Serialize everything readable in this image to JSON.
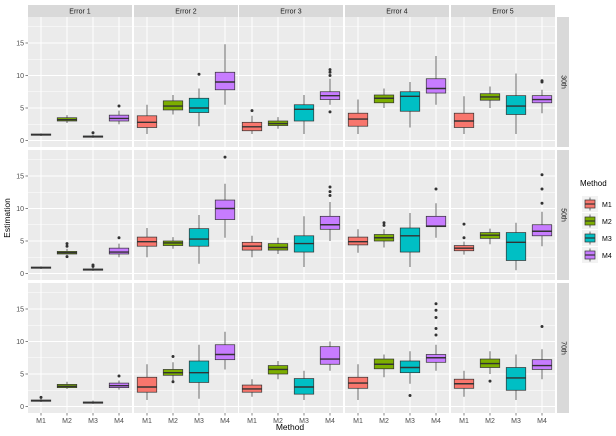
{
  "chart_data": {
    "type": "boxplot",
    "xlabel": "Method",
    "ylabel": "Estimation",
    "ylim": [
      -1,
      19
    ],
    "yticks": [
      0,
      5,
      10,
      15
    ],
    "categories": [
      "M1",
      "M2",
      "M3",
      "M4"
    ],
    "facet_cols": [
      "Error 1",
      "Error 2",
      "Error 3",
      "Error 4",
      "Error 5"
    ],
    "facet_rows": [
      "30th",
      "50th",
      "70th"
    ],
    "legend": {
      "title": "Method",
      "entries": [
        {
          "label": "M1",
          "color": "#F8766D"
        },
        {
          "label": "M2",
          "color": "#7CAE00"
        },
        {
          "label": "M3",
          "color": "#00BFC4"
        },
        {
          "label": "M4",
          "color": "#C77CFF"
        }
      ]
    },
    "panels": [
      {
        "row": "30th",
        "col": "Error 1",
        "boxes": [
          {
            "method": "M1",
            "min": 0.7,
            "q1": 0.8,
            "median": 0.9,
            "q3": 1.0,
            "max": 1.1,
            "outliers": []
          },
          {
            "method": "M2",
            "min": 2.7,
            "q1": 3.0,
            "median": 3.2,
            "q3": 3.5,
            "max": 3.9,
            "outliers": []
          },
          {
            "method": "M3",
            "min": 0.4,
            "q1": 0.5,
            "median": 0.6,
            "q3": 0.7,
            "max": 0.9,
            "outliers": [
              1.2
            ]
          },
          {
            "method": "M4",
            "min": 2.5,
            "q1": 3.0,
            "median": 3.4,
            "q3": 3.9,
            "max": 4.6,
            "outliers": [
              5.3
            ]
          }
        ]
      },
      {
        "row": "30th",
        "col": "Error 2",
        "boxes": [
          {
            "method": "M1",
            "min": 1.0,
            "q1": 2.0,
            "median": 2.8,
            "q3": 3.8,
            "max": 5.5,
            "outliers": []
          },
          {
            "method": "M2",
            "min": 4.0,
            "q1": 4.7,
            "median": 5.3,
            "q3": 6.1,
            "max": 7.0,
            "outliers": []
          },
          {
            "method": "M3",
            "min": 2.2,
            "q1": 4.3,
            "median": 5.0,
            "q3": 6.5,
            "max": 8.0,
            "outliers": [
              10.2
            ]
          },
          {
            "method": "M4",
            "min": 5.5,
            "q1": 7.8,
            "median": 9.0,
            "q3": 10.5,
            "max": 14.8,
            "outliers": []
          }
        ]
      },
      {
        "row": "30th",
        "col": "Error 3",
        "boxes": [
          {
            "method": "M1",
            "min": 1.0,
            "q1": 1.5,
            "median": 2.1,
            "q3": 2.8,
            "max": 3.8,
            "outliers": [
              4.6
            ]
          },
          {
            "method": "M2",
            "min": 1.8,
            "q1": 2.3,
            "median": 2.6,
            "q3": 3.0,
            "max": 3.6,
            "outliers": []
          },
          {
            "method": "M3",
            "min": 1.0,
            "q1": 3.0,
            "median": 4.8,
            "q3": 5.5,
            "max": 7.0,
            "outliers": []
          },
          {
            "method": "M4",
            "min": 5.5,
            "q1": 6.3,
            "median": 6.9,
            "q3": 7.5,
            "max": 9.5,
            "outliers": [
              4.4,
              10.0,
              10.5,
              10.9
            ]
          }
        ]
      },
      {
        "row": "30th",
        "col": "Error 4",
        "boxes": [
          {
            "method": "M1",
            "min": 1.0,
            "q1": 2.2,
            "median": 3.3,
            "q3": 4.2,
            "max": 6.3,
            "outliers": []
          },
          {
            "method": "M2",
            "min": 5.0,
            "q1": 5.8,
            "median": 6.5,
            "q3": 7.0,
            "max": 8.0,
            "outliers": []
          },
          {
            "method": "M3",
            "min": 2.0,
            "q1": 4.5,
            "median": 6.8,
            "q3": 7.5,
            "max": 9.0,
            "outliers": []
          },
          {
            "method": "M4",
            "min": 5.5,
            "q1": 7.3,
            "median": 8.0,
            "q3": 9.5,
            "max": 13.0,
            "outliers": []
          }
        ]
      },
      {
        "row": "30th",
        "col": "Error 5",
        "boxes": [
          {
            "method": "M1",
            "min": 1.0,
            "q1": 2.0,
            "median": 3.0,
            "q3": 4.2,
            "max": 6.8,
            "outliers": []
          },
          {
            "method": "M2",
            "min": 5.0,
            "q1": 6.2,
            "median": 6.7,
            "q3": 7.2,
            "max": 8.3,
            "outliers": []
          },
          {
            "method": "M3",
            "min": 1.0,
            "q1": 4.0,
            "median": 5.3,
            "q3": 6.9,
            "max": 10.3,
            "outliers": []
          },
          {
            "method": "M4",
            "min": 4.2,
            "q1": 5.8,
            "median": 6.3,
            "q3": 6.9,
            "max": 7.8,
            "outliers": [
              9.2,
              9.0
            ]
          }
        ]
      },
      {
        "row": "50th",
        "col": "Error 1",
        "boxes": [
          {
            "method": "M1",
            "min": 0.7,
            "q1": 0.8,
            "median": 0.9,
            "q3": 1.0,
            "max": 1.1,
            "outliers": []
          },
          {
            "method": "M2",
            "min": 2.9,
            "q1": 3.0,
            "median": 3.2,
            "q3": 3.4,
            "max": 3.8,
            "outliers": [
              2.6,
              4.2,
              4.6
            ]
          },
          {
            "method": "M3",
            "min": 0.4,
            "q1": 0.5,
            "median": 0.6,
            "q3": 0.7,
            "max": 0.9,
            "outliers": [
              1.1,
              1.3
            ]
          },
          {
            "method": "M4",
            "min": 2.5,
            "q1": 3.0,
            "median": 3.3,
            "q3": 3.9,
            "max": 4.6,
            "outliers": [
              5.5
            ]
          }
        ]
      },
      {
        "row": "50th",
        "col": "Error 2",
        "boxes": [
          {
            "method": "M1",
            "min": 2.5,
            "q1": 4.2,
            "median": 4.9,
            "q3": 5.6,
            "max": 7.0,
            "outliers": []
          },
          {
            "method": "M2",
            "min": 3.8,
            "q1": 4.3,
            "median": 4.7,
            "q3": 5.0,
            "max": 5.6,
            "outliers": []
          },
          {
            "method": "M3",
            "min": 1.5,
            "q1": 4.2,
            "median": 5.3,
            "q3": 6.9,
            "max": 9.0,
            "outliers": []
          },
          {
            "method": "M4",
            "min": 5.5,
            "q1": 8.3,
            "median": 10.0,
            "q3": 11.3,
            "max": 13.8,
            "outliers": [
              17.9
            ]
          }
        ]
      },
      {
        "row": "50th",
        "col": "Error 3",
        "boxes": [
          {
            "method": "M1",
            "min": 2.5,
            "q1": 3.6,
            "median": 4.2,
            "q3": 4.8,
            "max": 5.8,
            "outliers": []
          },
          {
            "method": "M2",
            "min": 3.0,
            "q1": 3.6,
            "median": 4.0,
            "q3": 4.6,
            "max": 5.5,
            "outliers": []
          },
          {
            "method": "M3",
            "min": 1.0,
            "q1": 3.3,
            "median": 4.6,
            "q3": 5.8,
            "max": 8.8,
            "outliers": []
          },
          {
            "method": "M4",
            "min": 5.0,
            "q1": 6.8,
            "median": 7.5,
            "q3": 8.8,
            "max": 11.0,
            "outliers": [
              12.0,
              12.6,
              13.3
            ]
          }
        ]
      },
      {
        "row": "50th",
        "col": "Error 4",
        "boxes": [
          {
            "method": "M1",
            "min": 3.2,
            "q1": 4.4,
            "median": 4.9,
            "q3": 5.6,
            "max": 6.8,
            "outliers": []
          },
          {
            "method": "M2",
            "min": 4.0,
            "q1": 5.0,
            "median": 5.5,
            "q3": 6.0,
            "max": 6.8,
            "outliers": [
              7.4,
              7.8
            ]
          },
          {
            "method": "M3",
            "min": 1.0,
            "q1": 3.3,
            "median": 5.8,
            "q3": 7.0,
            "max": 9.3,
            "outliers": []
          },
          {
            "method": "M4",
            "min": 5.5,
            "q1": 7.2,
            "median": 7.3,
            "q3": 8.8,
            "max": 10.8,
            "outliers": [
              13.0
            ]
          }
        ]
      },
      {
        "row": "50th",
        "col": "Error 5",
        "boxes": [
          {
            "method": "M1",
            "min": 2.9,
            "q1": 3.5,
            "median": 3.9,
            "q3": 4.3,
            "max": 4.9,
            "outliers": [
              5.5,
              7.6
            ]
          },
          {
            "method": "M2",
            "min": 4.5,
            "q1": 5.4,
            "median": 5.9,
            "q3": 6.3,
            "max": 6.9,
            "outliers": []
          },
          {
            "method": "M3",
            "min": 0.5,
            "q1": 2.0,
            "median": 4.8,
            "q3": 6.3,
            "max": 7.8,
            "outliers": []
          },
          {
            "method": "M4",
            "min": 4.2,
            "q1": 5.8,
            "median": 6.5,
            "q3": 7.5,
            "max": 9.5,
            "outliers": [
              10.8,
              13.0,
              15.2
            ]
          }
        ]
      },
      {
        "row": "70th",
        "col": "Error 1",
        "boxes": [
          {
            "method": "M1",
            "min": 0.7,
            "q1": 0.8,
            "median": 0.9,
            "q3": 1.0,
            "max": 1.2,
            "outliers": [
              1.4
            ]
          },
          {
            "method": "M2",
            "min": 2.7,
            "q1": 2.9,
            "median": 3.1,
            "q3": 3.4,
            "max": 3.8,
            "outliers": []
          },
          {
            "method": "M3",
            "min": 0.4,
            "q1": 0.5,
            "median": 0.6,
            "q3": 0.7,
            "max": 0.9,
            "outliers": []
          },
          {
            "method": "M4",
            "min": 2.6,
            "q1": 2.9,
            "median": 3.2,
            "q3": 3.6,
            "max": 4.0,
            "outliers": [
              4.7
            ]
          }
        ]
      },
      {
        "row": "70th",
        "col": "Error 2",
        "boxes": [
          {
            "method": "M1",
            "min": 1.0,
            "q1": 2.2,
            "median": 3.0,
            "q3": 4.5,
            "max": 6.5,
            "outliers": []
          },
          {
            "method": "M2",
            "min": 4.0,
            "q1": 4.8,
            "median": 5.2,
            "q3": 5.7,
            "max": 6.8,
            "outliers": [
              3.8,
              7.7
            ]
          },
          {
            "method": "M3",
            "min": 1.2,
            "q1": 3.7,
            "median": 5.2,
            "q3": 7.0,
            "max": 9.5,
            "outliers": []
          },
          {
            "method": "M4",
            "min": 5.7,
            "q1": 7.2,
            "median": 8.0,
            "q3": 9.5,
            "max": 11.5,
            "outliers": []
          }
        ]
      },
      {
        "row": "70th",
        "col": "Error 3",
        "boxes": [
          {
            "method": "M1",
            "min": 1.5,
            "q1": 2.2,
            "median": 2.7,
            "q3": 3.3,
            "max": 4.2,
            "outliers": []
          },
          {
            "method": "M2",
            "min": 4.2,
            "q1": 5.0,
            "median": 5.7,
            "q3": 6.3,
            "max": 7.0,
            "outliers": []
          },
          {
            "method": "M3",
            "min": 1.0,
            "q1": 1.9,
            "median": 3.0,
            "q3": 4.3,
            "max": 5.5,
            "outliers": []
          },
          {
            "method": "M4",
            "min": 5.5,
            "q1": 6.5,
            "median": 7.3,
            "q3": 9.2,
            "max": 10.0,
            "outliers": []
          }
        ]
      },
      {
        "row": "70th",
        "col": "Error 4",
        "boxes": [
          {
            "method": "M1",
            "min": 1.0,
            "q1": 2.8,
            "median": 3.6,
            "q3": 4.5,
            "max": 6.5,
            "outliers": []
          },
          {
            "method": "M2",
            "min": 4.5,
            "q1": 5.8,
            "median": 6.5,
            "q3": 7.3,
            "max": 8.0,
            "outliers": []
          },
          {
            "method": "M3",
            "min": 3.5,
            "q1": 5.2,
            "median": 6.0,
            "q3": 7.0,
            "max": 8.5,
            "outliers": [
              1.7
            ]
          },
          {
            "method": "M4",
            "min": 5.5,
            "q1": 6.8,
            "median": 7.5,
            "q3": 8.0,
            "max": 9.5,
            "outliers": [
              11.0,
              12.0,
              13.7,
              14.8,
              15.8
            ]
          }
        ]
      },
      {
        "row": "70th",
        "col": "Error 5",
        "boxes": [
          {
            "method": "M1",
            "min": 1.5,
            "q1": 2.8,
            "median": 3.5,
            "q3": 4.2,
            "max": 5.5,
            "outliers": []
          },
          {
            "method": "M2",
            "min": 5.0,
            "q1": 6.0,
            "median": 6.6,
            "q3": 7.3,
            "max": 8.5,
            "outliers": [
              3.9
            ]
          },
          {
            "method": "M3",
            "min": 1.0,
            "q1": 2.5,
            "median": 4.4,
            "q3": 6.0,
            "max": 8.0,
            "outliers": []
          },
          {
            "method": "M4",
            "min": 4.2,
            "q1": 5.7,
            "median": 6.3,
            "q3": 7.2,
            "max": 8.8,
            "outliers": [
              12.3
            ]
          }
        ]
      }
    ]
  }
}
